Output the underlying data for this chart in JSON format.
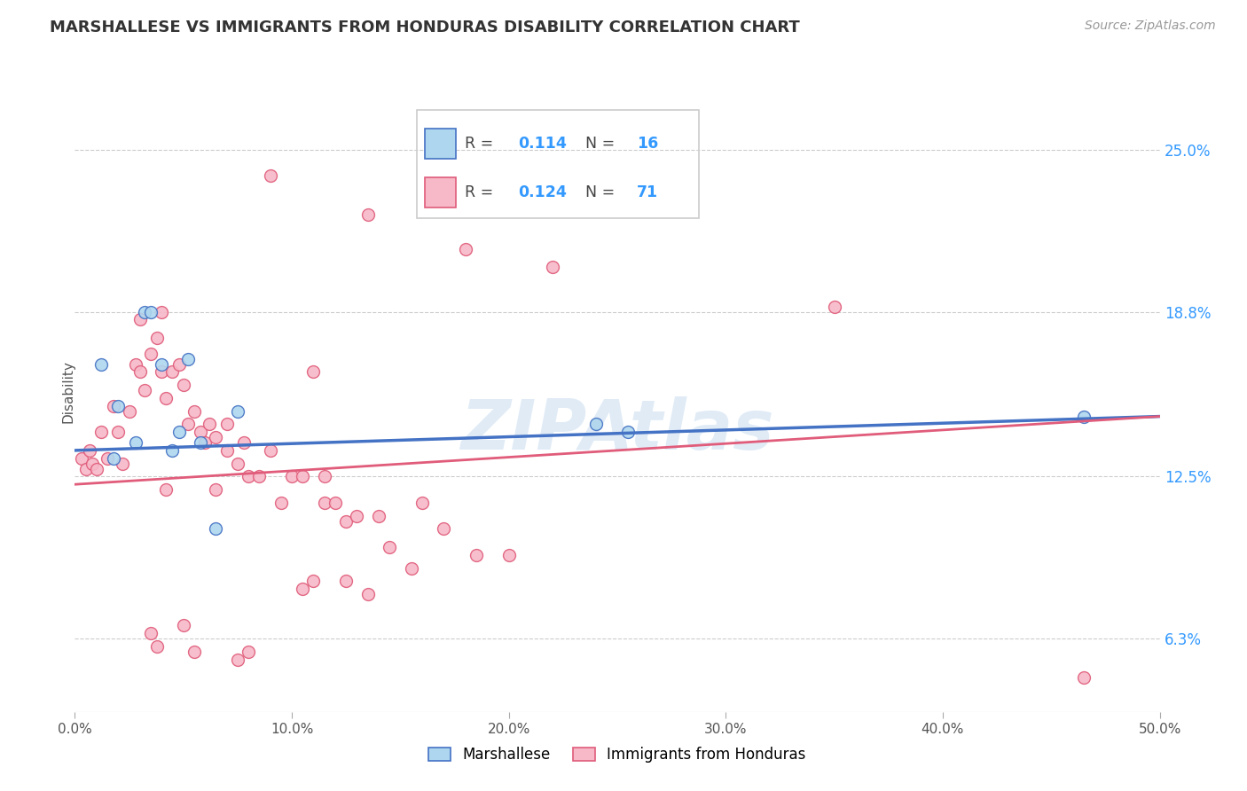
{
  "title": "MARSHALLESE VS IMMIGRANTS FROM HONDURAS DISABILITY CORRELATION CHART",
  "source": "Source: ZipAtlas.com",
  "ylabel": "Disability",
  "y_ticks": [
    6.3,
    12.5,
    18.8,
    25.0
  ],
  "y_tick_labels": [
    "6.3%",
    "12.5%",
    "18.8%",
    "25.0%"
  ],
  "x_range": [
    0.0,
    50.0
  ],
  "y_range": [
    3.5,
    28.0
  ],
  "label_blue": "Marshallese",
  "label_pink": "Immigrants from Honduras",
  "color_blue": "#AED6EE",
  "color_pink": "#F7B8C8",
  "line_color_blue": "#4472C4",
  "line_color_pink": "#E05C7A",
  "watermark": "ZIPAtlas",
  "blue_points": [
    [
      1.2,
      16.8
    ],
    [
      2.0,
      15.2
    ],
    [
      2.8,
      13.8
    ],
    [
      3.2,
      18.8
    ],
    [
      3.5,
      18.8
    ],
    [
      4.0,
      16.8
    ],
    [
      4.5,
      13.5
    ],
    [
      4.8,
      14.2
    ],
    [
      5.2,
      17.0
    ],
    [
      5.8,
      13.8
    ],
    [
      6.5,
      10.5
    ],
    [
      7.5,
      15.0
    ],
    [
      24.0,
      14.5
    ],
    [
      25.5,
      14.2
    ],
    [
      46.5,
      14.8
    ],
    [
      1.8,
      13.2
    ]
  ],
  "pink_points": [
    [
      0.3,
      13.2
    ],
    [
      0.5,
      12.8
    ],
    [
      0.7,
      13.5
    ],
    [
      0.8,
      13.0
    ],
    [
      1.0,
      12.8
    ],
    [
      1.2,
      14.2
    ],
    [
      1.5,
      13.2
    ],
    [
      1.8,
      15.2
    ],
    [
      2.0,
      14.2
    ],
    [
      2.2,
      13.0
    ],
    [
      2.5,
      15.0
    ],
    [
      2.8,
      16.8
    ],
    [
      3.0,
      18.5
    ],
    [
      3.0,
      16.5
    ],
    [
      3.2,
      15.8
    ],
    [
      3.5,
      17.2
    ],
    [
      3.8,
      17.8
    ],
    [
      4.0,
      18.8
    ],
    [
      4.0,
      16.5
    ],
    [
      4.2,
      15.5
    ],
    [
      4.5,
      16.5
    ],
    [
      4.8,
      16.8
    ],
    [
      5.0,
      16.0
    ],
    [
      5.2,
      14.5
    ],
    [
      5.5,
      15.0
    ],
    [
      5.8,
      14.2
    ],
    [
      6.0,
      13.8
    ],
    [
      6.2,
      14.5
    ],
    [
      6.5,
      14.0
    ],
    [
      7.0,
      14.5
    ],
    [
      7.0,
      13.5
    ],
    [
      7.5,
      13.0
    ],
    [
      7.8,
      13.8
    ],
    [
      8.0,
      12.5
    ],
    [
      8.5,
      12.5
    ],
    [
      9.0,
      13.5
    ],
    [
      9.5,
      11.5
    ],
    [
      10.0,
      12.5
    ],
    [
      10.5,
      12.5
    ],
    [
      11.0,
      16.5
    ],
    [
      11.5,
      11.5
    ],
    [
      12.0,
      11.5
    ],
    [
      12.5,
      10.8
    ],
    [
      13.0,
      11.0
    ],
    [
      14.0,
      11.0
    ],
    [
      14.5,
      9.8
    ],
    [
      15.5,
      9.0
    ],
    [
      16.0,
      11.5
    ],
    [
      17.0,
      10.5
    ],
    [
      3.5,
      6.5
    ],
    [
      3.8,
      6.0
    ],
    [
      5.0,
      6.8
    ],
    [
      5.5,
      5.8
    ],
    [
      7.5,
      5.5
    ],
    [
      8.0,
      5.8
    ],
    [
      10.5,
      8.2
    ],
    [
      11.0,
      8.5
    ],
    [
      12.5,
      8.5
    ],
    [
      13.5,
      8.0
    ],
    [
      18.5,
      9.5
    ],
    [
      20.0,
      9.5
    ],
    [
      35.0,
      19.0
    ],
    [
      46.5,
      4.8
    ],
    [
      18.0,
      21.2
    ],
    [
      22.0,
      20.5
    ],
    [
      9.0,
      24.0
    ],
    [
      13.5,
      22.5
    ],
    [
      11.5,
      12.5
    ],
    [
      6.5,
      12.0
    ],
    [
      4.2,
      12.0
    ]
  ],
  "blue_line_x": [
    0.0,
    50.0
  ],
  "blue_line_y": [
    13.5,
    14.8
  ],
  "pink_line_x": [
    0.0,
    50.0
  ],
  "pink_line_y": [
    12.2,
    14.8
  ]
}
